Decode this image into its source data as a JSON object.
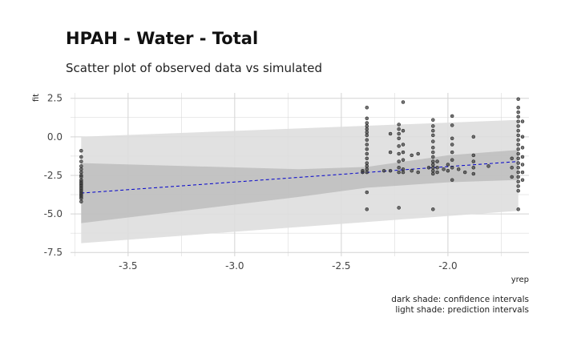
{
  "chart_data": {
    "type": "scatter",
    "title": "HPAH - Water - Total",
    "subtitle": "Scatter plot of observed data vs simulated",
    "xlabel": "yrep",
    "ylabel": "fit",
    "xlim": [
      -3.77,
      -1.62
    ],
    "ylim": [
      -7.75,
      2.85
    ],
    "x_ticks": [
      "-3.5",
      "-3.0",
      "-2.5",
      "-2.0"
    ],
    "x_tick_values": [
      -3.5,
      -3.0,
      -2.5,
      -2.0
    ],
    "y_ticks": [
      "2.5",
      "0.0",
      "-2.5",
      "-5.0",
      "-7.5"
    ],
    "y_tick_values": [
      2.5,
      0.0,
      -2.5,
      -5.0,
      -7.5
    ],
    "grid": true,
    "legend": "none",
    "caption": [
      "dark shade: confidence intervals",
      "light shade: prediction intervals"
    ],
    "colors": {
      "points": "#4a4a4a",
      "fit_line": "#0000cc",
      "confidence": "#bdbdbd",
      "prediction": "#dedede",
      "grid": "#d3d3d3"
    },
    "fit_line": {
      "x": [
        -3.72,
        -1.67
      ],
      "y": [
        -3.65,
        -1.6
      ]
    },
    "confidence_band": {
      "x": [
        -3.72,
        -2.7,
        -2.38,
        -2.0,
        -1.67
      ],
      "lower": [
        -5.6,
        -3.9,
        -3.3,
        -2.95,
        -2.8
      ],
      "upper": [
        -1.7,
        -2.1,
        -1.95,
        -1.2,
        -0.85
      ]
    },
    "prediction_band": {
      "x": [
        -3.72,
        -1.67
      ],
      "lower": [
        -6.9,
        -4.8
      ],
      "upper": [
        0.0,
        1.1
      ]
    },
    "series": [
      {
        "x": -3.72,
        "y": [
          -0.9,
          -1.3,
          -1.6,
          -1.9,
          -2.1,
          -2.3,
          -2.5,
          -2.6,
          -2.8,
          -2.9,
          -3.0,
          -3.1,
          -3.2,
          -3.3,
          -3.4,
          -3.5,
          -3.6,
          -3.7,
          -3.8,
          -3.9,
          -4.0,
          -4.2
        ]
      },
      {
        "x": -2.38,
        "y": [
          1.9,
          1.2,
          0.9,
          0.7,
          0.5,
          0.3,
          0.1,
          -0.2,
          -0.5,
          -0.8,
          -1.1,
          -1.4,
          -1.7,
          -1.9,
          -2.1,
          -2.3,
          -3.6,
          -4.7
        ]
      },
      {
        "x": -2.4,
        "y": [
          -2.2,
          -2.3
        ]
      },
      {
        "x": -2.3,
        "y": [
          -2.2
        ]
      },
      {
        "x": -2.27,
        "y": [
          0.2,
          -1.0,
          -2.2
        ]
      },
      {
        "x": -2.23,
        "y": [
          0.8,
          0.5,
          0.2,
          -0.1,
          -0.6,
          -1.1,
          -1.6,
          -2.0,
          -2.3,
          -4.6
        ]
      },
      {
        "x": -2.21,
        "y": [
          2.25,
          0.4,
          -0.5,
          -1.0,
          -1.5,
          -2.1,
          -2.3
        ]
      },
      {
        "x": -2.17,
        "y": [
          -1.2,
          -2.2
        ]
      },
      {
        "x": -2.14,
        "y": [
          -1.1,
          -2.3
        ]
      },
      {
        "x": -2.09,
        "y": [
          -2.0
        ]
      },
      {
        "x": -2.07,
        "y": [
          1.1,
          0.7,
          0.4,
          0.1,
          -0.3,
          -0.7,
          -1.0,
          -1.3,
          -1.6,
          -1.8,
          -2.0,
          -2.2,
          -2.4,
          -4.7
        ]
      },
      {
        "x": -2.05,
        "y": [
          -1.6,
          -2.0,
          -2.3
        ]
      },
      {
        "x": -2.02,
        "y": [
          -2.1
        ]
      },
      {
        "x": -2.0,
        "y": [
          -1.8,
          -2.2
        ]
      },
      {
        "x": -1.98,
        "y": [
          1.35,
          0.75,
          -0.1,
          -0.5,
          -1.0,
          -1.5,
          -2.0,
          -2.8
        ]
      },
      {
        "x": -1.95,
        "y": [
          -2.1
        ]
      },
      {
        "x": -1.92,
        "y": [
          -2.3
        ]
      },
      {
        "x": -1.88,
        "y": [
          0.0,
          -1.2,
          -1.6,
          -2.0,
          -2.4
        ]
      },
      {
        "x": -1.81,
        "y": [
          -1.9
        ]
      },
      {
        "x": -1.7,
        "y": [
          -1.4,
          -2.0,
          -2.6
        ]
      },
      {
        "x": -1.67,
        "y": [
          2.45,
          1.9,
          1.6,
          1.3,
          1.0,
          0.7,
          0.4,
          0.1,
          -0.2,
          -0.5,
          -0.8,
          -1.1,
          -1.4,
          -1.7,
          -2.0,
          -2.3,
          -2.6,
          -2.9,
          -3.2,
          -3.5,
          -4.7
        ]
      },
      {
        "x": -1.65,
        "y": [
          1.0,
          0.0,
          -0.7,
          -1.3,
          -1.8,
          -2.3,
          -2.8
        ]
      }
    ]
  }
}
